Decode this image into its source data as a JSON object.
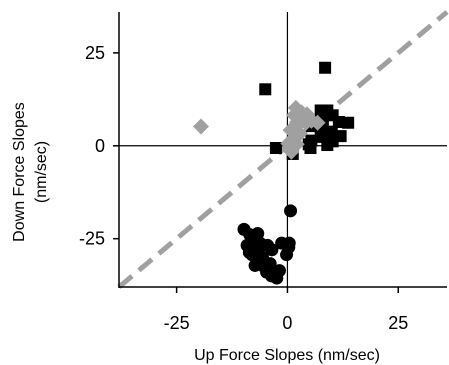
{
  "chart_data": {
    "type": "scatter",
    "title": "",
    "xlabel": "Up Force Slopes (nm/sec)",
    "ylabel_line1": "Down Force Slopes",
    "ylabel_line2": "(nm/sec)",
    "xlim": [
      -38,
      36
    ],
    "ylim": [
      -38,
      36
    ],
    "xticks": [
      -25,
      0,
      25
    ],
    "yticks": [
      -25,
      0,
      25
    ],
    "xtick_labels": [
      "-25",
      "0",
      "25"
    ],
    "ytick_labels": [
      "-25",
      "0",
      "25"
    ],
    "zero_lines": true,
    "identity_line": {
      "style": "dashed",
      "color": "#a0a0a0"
    },
    "grid": false,
    "legend": "none",
    "series": [
      {
        "marker": "square",
        "color": "#000000",
        "points": [
          [
            8.5,
            21
          ],
          [
            -5,
            15.2
          ],
          [
            7.5,
            9.5
          ],
          [
            9,
            9.5
          ],
          [
            10.2,
            8.2
          ],
          [
            8,
            7
          ],
          [
            11.6,
            6.4
          ],
          [
            13.7,
            6.2
          ],
          [
            5.5,
            5.3
          ],
          [
            7.5,
            4
          ],
          [
            10,
            3.8
          ],
          [
            12,
            2.6
          ],
          [
            8,
            2.4
          ],
          [
            5.4,
            1.4
          ],
          [
            10.2,
            1.2
          ],
          [
            4.8,
            0.4
          ],
          [
            -2.6,
            -0.6
          ],
          [
            5.2,
            -0.6
          ],
          [
            9,
            0.2
          ],
          [
            1.2,
            -2.2
          ]
        ]
      },
      {
        "marker": "diamond",
        "color": "#a0a0a0",
        "points": [
          [
            -19.5,
            5.2
          ],
          [
            1.5,
            8.2
          ],
          [
            2.2,
            6.4
          ],
          [
            3.4,
            7.8
          ],
          [
            1.9,
            10.2
          ],
          [
            3.2,
            9
          ],
          [
            4.2,
            6.2
          ],
          [
            5.4,
            6.7
          ],
          [
            6.8,
            6.2
          ],
          [
            0.7,
            4.2
          ],
          [
            2.8,
            3.3
          ],
          [
            2.4,
            5.7
          ],
          [
            4.4,
            8.5
          ],
          [
            1,
            1.4
          ],
          [
            2.1,
            0.4
          ],
          [
            0.9,
            -1.6
          ],
          [
            0.2,
            0.6
          ]
        ]
      },
      {
        "marker": "circle",
        "color": "#000000",
        "points": [
          [
            0.7,
            -17.5
          ],
          [
            -9.8,
            -22.5
          ],
          [
            -8.5,
            -23.9
          ],
          [
            -6.7,
            -23.6
          ],
          [
            -9.1,
            -26.8
          ],
          [
            -7.9,
            -25
          ],
          [
            -6.2,
            -26.2
          ],
          [
            -4.5,
            -26.8
          ],
          [
            -3.5,
            -28
          ],
          [
            -8,
            -29.3
          ],
          [
            -6.4,
            -27.6
          ],
          [
            -5.6,
            -30.1
          ],
          [
            -7.3,
            -32.2
          ],
          [
            -5.3,
            -32.5
          ],
          [
            -3.9,
            -31.7
          ],
          [
            -4.7,
            -34
          ],
          [
            -3.6,
            -35
          ],
          [
            -2.4,
            -35.6
          ],
          [
            -1.8,
            -33.6
          ],
          [
            -0.2,
            -29.3
          ],
          [
            -1.3,
            -26.2
          ],
          [
            0.3,
            -27.3
          ],
          [
            0.4,
            -26.2
          ],
          [
            -8.6,
            -28.7
          ]
        ]
      }
    ]
  }
}
